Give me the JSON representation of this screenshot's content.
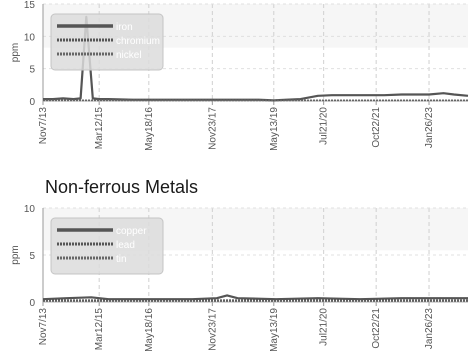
{
  "chart_data": [
    {
      "type": "line",
      "title": "",
      "ylabel": "ppm",
      "ylim": [
        0,
        15
      ],
      "yticks": [
        0,
        5,
        10,
        15
      ],
      "xlim": [
        "2013-11-07",
        "2024-01-01"
      ],
      "xticks": [
        "Nov7/13",
        "Mar12/15",
        "May18/16",
        "Nov23/17",
        "May13/19",
        "Jul21/20",
        "Oct22/21",
        "Jan26/23"
      ],
      "xtick_dates": [
        "2013-11-07",
        "2015-03-12",
        "2016-05-18",
        "2017-11-23",
        "2019-05-13",
        "2020-07-21",
        "2021-10-22",
        "2023-01-26"
      ],
      "grid": true,
      "legend_position": "top-left",
      "series": [
        {
          "name": "iron",
          "color": "#555555",
          "style": "solid",
          "points": [
            [
              "2013-11-07",
              0.3
            ],
            [
              "2014-02-01",
              0.3
            ],
            [
              "2014-05-01",
              0.4
            ],
            [
              "2014-08-01",
              0.3
            ],
            [
              "2014-10-01",
              0.4
            ],
            [
              "2014-11-20",
              13
            ],
            [
              "2015-01-15",
              0.4
            ],
            [
              "2015-03-12",
              0.3
            ],
            [
              "2015-06-01",
              0.3
            ],
            [
              "2016-01-01",
              0.2
            ],
            [
              "2017-01-01",
              0.2
            ],
            [
              "2018-01-01",
              0.2
            ],
            [
              "2019-01-01",
              0.2
            ],
            [
              "2019-05-13",
              0.1
            ],
            [
              "2019-09-01",
              0.2
            ],
            [
              "2020-01-01",
              0.3
            ],
            [
              "2020-06-01",
              0.8
            ],
            [
              "2020-10-01",
              0.9
            ],
            [
              "2021-06-01",
              0.9
            ],
            [
              "2022-01-01",
              0.9
            ],
            [
              "2022-06-01",
              1.0
            ],
            [
              "2023-01-26",
              1.0
            ],
            [
              "2023-06-01",
              1.2
            ],
            [
              "2023-09-01",
              1.0
            ],
            [
              "2024-01-01",
              0.8
            ]
          ]
        },
        {
          "name": "chromium",
          "color": "#555555",
          "style": "dotted",
          "points": [
            [
              "2013-11-07",
              0.1
            ],
            [
              "2016-01-01",
              0.1
            ],
            [
              "2019-01-01",
              0.1
            ],
            [
              "2022-01-01",
              0.1
            ],
            [
              "2024-01-01",
              0.1
            ]
          ]
        },
        {
          "name": "nickel",
          "color": "#666666",
          "style": "dotted",
          "points": [
            [
              "2013-11-07",
              0.1
            ],
            [
              "2016-01-01",
              0.1
            ],
            [
              "2019-01-01",
              0.1
            ],
            [
              "2022-01-01",
              0.1
            ],
            [
              "2024-01-01",
              0.1
            ]
          ]
        }
      ]
    },
    {
      "type": "line",
      "title": "Non-ferrous Metals",
      "ylabel": "ppm",
      "ylim": [
        0,
        10
      ],
      "yticks": [
        0,
        5,
        10
      ],
      "xlim": [
        "2013-11-07",
        "2024-01-01"
      ],
      "xticks": [
        "Nov7/13",
        "Mar12/15",
        "May18/16",
        "Nov23/17",
        "May13/19",
        "Jul21/20",
        "Oct22/21",
        "Jan26/23"
      ],
      "xtick_dates": [
        "2013-11-07",
        "2015-03-12",
        "2016-05-18",
        "2017-11-23",
        "2019-05-13",
        "2020-07-21",
        "2021-10-22",
        "2023-01-26"
      ],
      "grid": true,
      "legend_position": "top-left",
      "series": [
        {
          "name": "copper",
          "color": "#555555",
          "style": "solid",
          "points": [
            [
              "2013-11-07",
              0.3
            ],
            [
              "2014-06-01",
              0.4
            ],
            [
              "2015-01-01",
              0.5
            ],
            [
              "2015-06-01",
              0.3
            ],
            [
              "2016-06-01",
              0.3
            ],
            [
              "2017-06-01",
              0.3
            ],
            [
              "2018-01-01",
              0.4
            ],
            [
              "2018-04-01",
              0.7
            ],
            [
              "2018-07-01",
              0.4
            ],
            [
              "2019-06-01",
              0.3
            ],
            [
              "2020-06-01",
              0.4
            ],
            [
              "2021-06-01",
              0.3
            ],
            [
              "2022-06-01",
              0.4
            ],
            [
              "2023-06-01",
              0.4
            ],
            [
              "2024-01-01",
              0.4
            ]
          ]
        },
        {
          "name": "lead",
          "color": "#555555",
          "style": "dotted",
          "points": [
            [
              "2013-11-07",
              0.2
            ],
            [
              "2016-01-01",
              0.2
            ],
            [
              "2019-01-01",
              0.2
            ],
            [
              "2022-01-01",
              0.2
            ],
            [
              "2024-01-01",
              0.2
            ]
          ]
        },
        {
          "name": "tin",
          "color": "#666666",
          "style": "dotted",
          "points": [
            [
              "2013-11-07",
              0.1
            ],
            [
              "2016-01-01",
              0.1
            ],
            [
              "2019-01-01",
              0.1
            ],
            [
              "2022-01-01",
              0.1
            ],
            [
              "2024-01-01",
              0.1
            ]
          ]
        }
      ]
    }
  ]
}
